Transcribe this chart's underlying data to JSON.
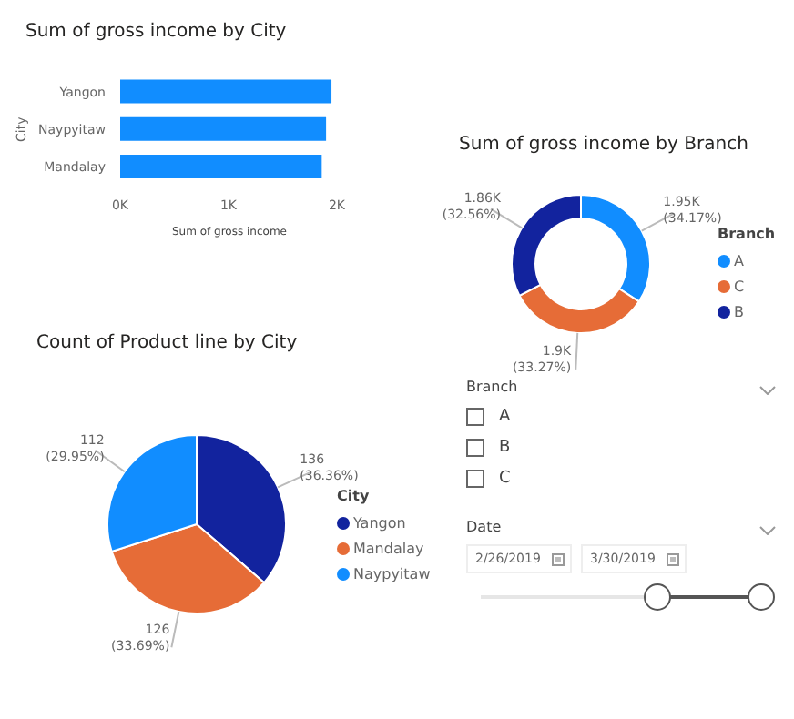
{
  "chart_data": [
    {
      "type": "bar",
      "title": "Sum of gross income by City",
      "orientation": "horizontal",
      "xlabel": "Sum of gross income",
      "ylabel": "City",
      "categories": [
        "Yangon",
        "Naypyitaw",
        "Mandalay"
      ],
      "values": [
        1950,
        1900,
        1860
      ],
      "color": "#118dff",
      "xlim": [
        0,
        2000
      ],
      "xticks": [
        {
          "value": 0,
          "label": "0K"
        },
        {
          "value": 1000,
          "label": "1K"
        },
        {
          "value": 2000,
          "label": "2K"
        }
      ]
    },
    {
      "type": "donut",
      "title": "Sum of gross income by Branch",
      "legend_title": "Branch",
      "legend": "right",
      "categories": [
        "A",
        "C",
        "B"
      ],
      "values": [
        1950,
        1900,
        1860
      ],
      "colors": [
        "#118dff",
        "#e66c37",
        "#12239e"
      ],
      "value_labels": [
        "1.95K (34.17%)",
        "1.9K (33.27%)",
        "1.86K (32.56%)"
      ]
    },
    {
      "type": "pie",
      "title": "Count of Product line by City",
      "legend_title": "City",
      "legend": "right",
      "categories": [
        "Yangon",
        "Mandalay",
        "Naypyitaw"
      ],
      "values": [
        136,
        126,
        112
      ],
      "colors": [
        "#12239e",
        "#e66c37",
        "#118dff"
      ],
      "value_labels": [
        "136 (36.36%)",
        "126 (33.69%)",
        "112 (29.95%)"
      ]
    },
    {
      "type": "other",
      "title": "Branch",
      "categories": [
        "A",
        "B",
        "C"
      ]
    },
    {
      "type": "other",
      "title": "Date",
      "annotations": [
        "2/26/2019",
        "3/30/2019"
      ]
    }
  ]
}
